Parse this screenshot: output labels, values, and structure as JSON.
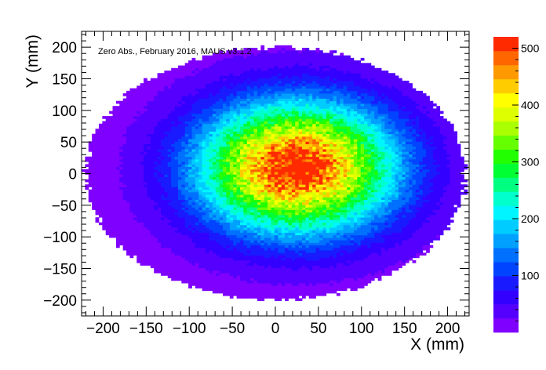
{
  "chart_data": {
    "type": "heatmap",
    "annotation": "Zero Abs., February 2016, MAUS v3.1.2",
    "xlabel": "X (mm)",
    "ylabel": "Y (mm)",
    "xlim": [
      -225,
      225
    ],
    "ylim": [
      -225,
      225
    ],
    "x_ticks": [
      -200,
      -150,
      -100,
      -50,
      0,
      50,
      100,
      150,
      200
    ],
    "x_tick_labels": [
      "−200",
      "−150",
      "−100",
      "−50",
      "0",
      "50",
      "100",
      "150",
      "200"
    ],
    "y_ticks": [
      -200,
      -150,
      -100,
      -50,
      0,
      50,
      100,
      150,
      200
    ],
    "y_tick_labels": [
      "−200",
      "−150",
      "−100",
      "−50",
      "0",
      "50",
      "100",
      "150",
      "200"
    ],
    "z_range": [
      0,
      520
    ],
    "z_ticks": [
      100,
      200,
      300,
      400,
      500
    ],
    "z_tick_labels": [
      "100",
      "200",
      "300",
      "400",
      "500"
    ],
    "colorbar_colors": [
      "#7f00ff",
      "#5500ff",
      "#3300ff",
      "#1a1aff",
      "#0044ff",
      "#0070ff",
      "#00a0ff",
      "#00ccff",
      "#00f5ff",
      "#00ffcc",
      "#00ff80",
      "#00ff33",
      "#22ff00",
      "#66ff00",
      "#aaff00",
      "#ddff00",
      "#ffff00",
      "#ffcc00",
      "#ff9900",
      "#ff6600",
      "#ff2a00"
    ],
    "bin_width_mm": 4,
    "distribution": {
      "peak_counts": 520,
      "center_x_mm": 25,
      "center_y_mm": 10,
      "sigma_x_mm": 80,
      "sigma_y_mm": 72,
      "extent_rx_mm": 220,
      "extent_ry_mm": 200
    }
  }
}
